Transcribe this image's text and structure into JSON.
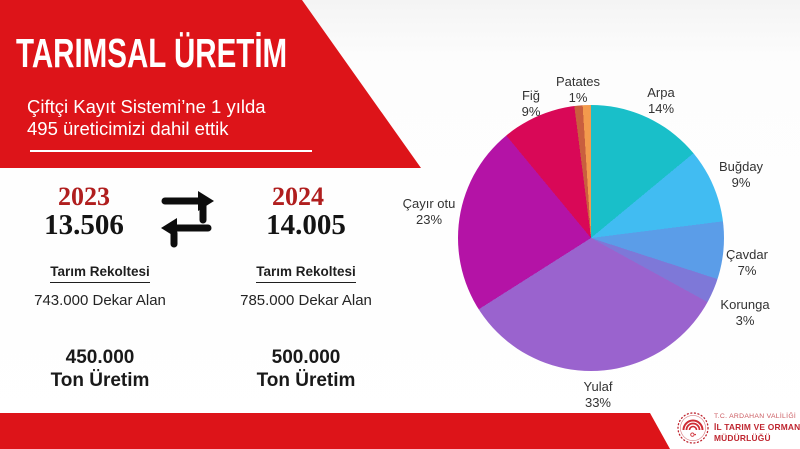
{
  "header": {
    "title": "TARIMSAL ÜRETİM",
    "subtitle_line1": "Çiftçi Kayıt Sistemi’ne 1 yılda",
    "subtitle_line2": "495 üreticimizi dahil ettik"
  },
  "comparison": {
    "left": {
      "year": "2023",
      "value": "13.506",
      "harvest_label": "Tarım Rekoltesi",
      "area": "743.000 Dekar Alan",
      "production_value": "450.000",
      "production_unit": "Ton Üretim"
    },
    "right": {
      "year": "2024",
      "value": "14.005",
      "harvest_label": "Tarım Rekoltesi",
      "area": "785.000 Dekar Alan",
      "production_value": "500.000",
      "production_unit": "Ton Üretim"
    }
  },
  "chart_data": {
    "type": "pie",
    "direction": "clockwise",
    "start_angle_deg": 0,
    "slices": [
      {
        "name": "Arpa",
        "value": 14,
        "color": "#19bfc9"
      },
      {
        "name": "Buğday",
        "value": 9,
        "color": "#41bcf2"
      },
      {
        "name": "Çavdar",
        "value": 7,
        "color": "#5b9de8"
      },
      {
        "name": "Korunga",
        "value": 3,
        "color": "#7e78d8"
      },
      {
        "name": "Yulaf",
        "value": 33,
        "color": "#9a63ce"
      },
      {
        "name": "Çayır otu",
        "value": 23,
        "color": "#b413a6"
      },
      {
        "name": "Fiğ",
        "value": 9,
        "color": "#d90857"
      },
      {
        "name": "",
        "value": 1,
        "color": "#c95f3e"
      },
      {
        "name": "Patates",
        "value": 1,
        "color": "#f39a4d"
      }
    ],
    "legend": "labels around pie with percent values"
  },
  "footer": {
    "org_line1": "T.C. ARDAHAN VALİLİĞİ",
    "org_line2": "İL TARIM VE ORMAN",
    "org_line3": "MÜDÜRLÜĞÜ"
  },
  "colors": {
    "banner_red": "#dd1419",
    "year_red": "#b01e1e",
    "logo_red": "#bf2630",
    "arrow_black": "#0d0d0d",
    "pie_label_text": "#333333"
  }
}
